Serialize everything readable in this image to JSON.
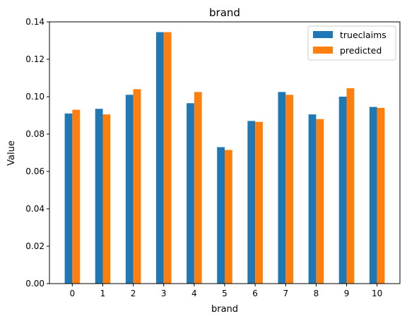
{
  "chart_data": {
    "type": "bar",
    "title": "brand",
    "xlabel": "brand",
    "ylabel": "Value",
    "categories": [
      "0",
      "1",
      "2",
      "3",
      "4",
      "5",
      "6",
      "7",
      "8",
      "9",
      "10"
    ],
    "ylim": [
      0,
      0.14
    ],
    "yticks": [
      "0.00",
      "0.02",
      "0.04",
      "0.06",
      "0.08",
      "0.10",
      "0.12",
      "0.14"
    ],
    "grid": false,
    "legend_position": "top-right",
    "series": [
      {
        "name": "trueclaims",
        "color": "#1f77b4",
        "values": [
          0.091,
          0.0935,
          0.101,
          0.1345,
          0.0965,
          0.073,
          0.087,
          0.1025,
          0.0905,
          0.1,
          0.0945
        ]
      },
      {
        "name": "predicted",
        "color": "#ff7f0e",
        "values": [
          0.093,
          0.0905,
          0.104,
          0.1345,
          0.1025,
          0.0715,
          0.0865,
          0.101,
          0.088,
          0.1045,
          0.094
        ]
      }
    ]
  }
}
